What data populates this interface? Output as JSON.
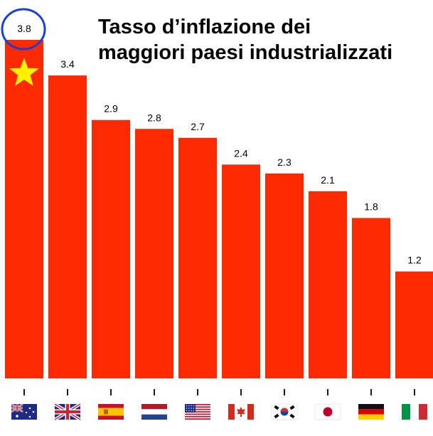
{
  "title_lines": [
    "Tasso d’inflazione dei",
    "maggiori paesi industrializzati"
  ],
  "chart_data": {
    "type": "bar",
    "title": "Tasso d’inflazione dei maggiori paesi industrializzati",
    "categories": [
      "Australia",
      "United Kingdom",
      "Spain",
      "Netherlands",
      "United States",
      "Canada",
      "South Korea",
      "Japan",
      "Germany",
      "Italy"
    ],
    "values": [
      3.8,
      3.4,
      2.9,
      2.8,
      2.7,
      2.4,
      2.3,
      2.1,
      1.8,
      1.2
    ],
    "value_labels": [
      "3.8",
      "3.4",
      "2.9",
      "2.8",
      "2.7",
      "2.4",
      "2.3",
      "2.1",
      "1.8",
      "1.2"
    ],
    "ylim": [
      0,
      4
    ],
    "grid": false,
    "bar_color": "#fd2a00",
    "highlight": {
      "index": 0,
      "circle_color": "#1a3fd6",
      "star_color": "#fff200"
    },
    "tick_marks": true,
    "category_icons": [
      "flag-australia-icon",
      "flag-uk-icon",
      "flag-spain-icon",
      "flag-netherlands-icon",
      "flag-usa-icon",
      "flag-canada-icon",
      "flag-south-korea-icon",
      "flag-japan-icon",
      "flag-germany-icon",
      "flag-italy-icon"
    ]
  }
}
